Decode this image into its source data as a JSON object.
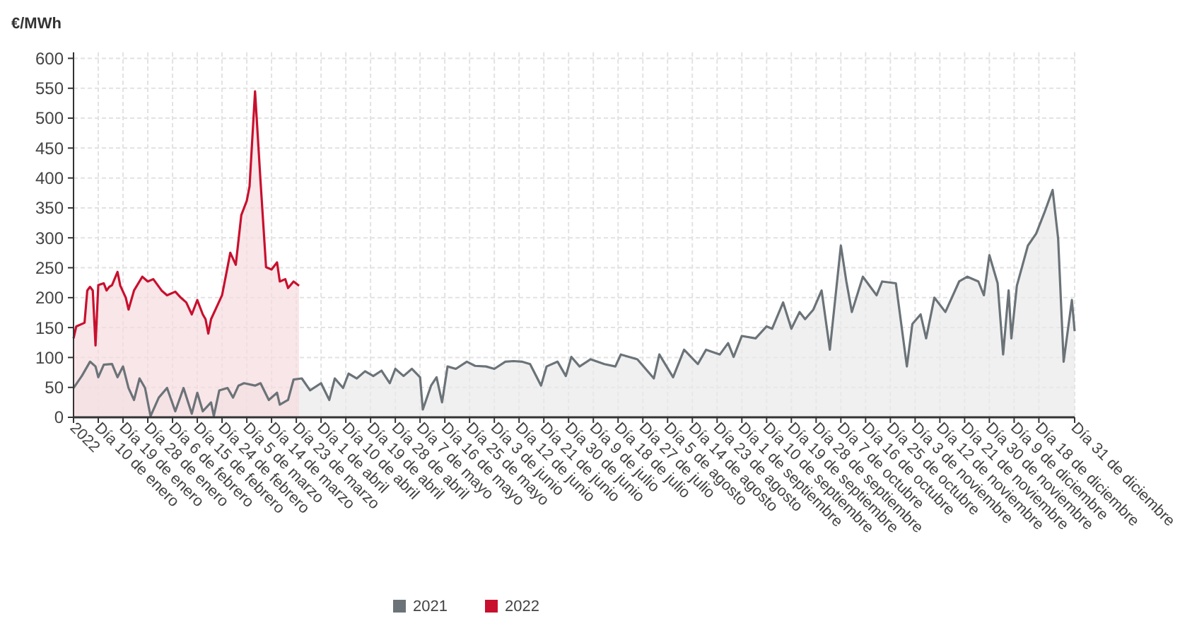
{
  "chart_data": {
    "type": "area",
    "ylabel": "€/MWh",
    "xlim": [
      "2022-01-01",
      "2022-12-31"
    ],
    "ylim": [
      0,
      610
    ],
    "yticks": [
      0,
      50,
      100,
      150,
      200,
      250,
      300,
      350,
      400,
      450,
      500,
      550,
      600
    ],
    "xticks": [
      {
        "value": "2022-01-01",
        "label": "2022"
      },
      {
        "value": "2022-01-10",
        "label": "Día 10 de enero"
      },
      {
        "value": "2022-01-19",
        "label": "Día 19 de enero"
      },
      {
        "value": "2022-01-28",
        "label": "Día 28 de enero"
      },
      {
        "value": "2022-02-06",
        "label": "Día 6 de febrero"
      },
      {
        "value": "2022-02-15",
        "label": "Día 15 de febrero"
      },
      {
        "value": "2022-02-24",
        "label": "Día 24 de febrero"
      },
      {
        "value": "2022-03-05",
        "label": "Día 5 de marzo"
      },
      {
        "value": "2022-03-14",
        "label": "Día 14 de marzo"
      },
      {
        "value": "2022-03-23",
        "label": "Día 23 de marzo"
      },
      {
        "value": "2022-04-01",
        "label": "Día 1 de abril"
      },
      {
        "value": "2022-04-10",
        "label": "Día 10 de abril"
      },
      {
        "value": "2022-04-19",
        "label": "Día 19 de abril"
      },
      {
        "value": "2022-04-28",
        "label": "Día 28 de abril"
      },
      {
        "value": "2022-05-07",
        "label": "Día 7 de mayo"
      },
      {
        "value": "2022-05-16",
        "label": "Día 16 de mayo"
      },
      {
        "value": "2022-05-25",
        "label": "Día 25 de mayo"
      },
      {
        "value": "2022-06-03",
        "label": "Día 3 de junio"
      },
      {
        "value": "2022-06-12",
        "label": "Día 12 de junio"
      },
      {
        "value": "2022-06-21",
        "label": "Día 21 de junio"
      },
      {
        "value": "2022-06-30",
        "label": "Día 30 de junio"
      },
      {
        "value": "2022-07-09",
        "label": "Día 9 de julio"
      },
      {
        "value": "2022-07-18",
        "label": "Día 18 de julio"
      },
      {
        "value": "2022-07-27",
        "label": "Día 27 de julio"
      },
      {
        "value": "2022-08-05",
        "label": "Día 5 de agosto"
      },
      {
        "value": "2022-08-14",
        "label": "Día 14 de agosto"
      },
      {
        "value": "2022-08-23",
        "label": "Día 23 de agosto"
      },
      {
        "value": "2022-09-01",
        "label": "Día 1 de septiembre"
      },
      {
        "value": "2022-09-10",
        "label": "Día 10 de septiembre"
      },
      {
        "value": "2022-09-19",
        "label": "Día 19 de septiembre"
      },
      {
        "value": "2022-09-28",
        "label": "Día 28 de septiembre"
      },
      {
        "value": "2022-10-07",
        "label": "Día 7 de octubre"
      },
      {
        "value": "2022-10-16",
        "label": "Día 16 de octubre"
      },
      {
        "value": "2022-10-25",
        "label": "Día 25 de octubre"
      },
      {
        "value": "2022-11-03",
        "label": "Día 3 de noviembre"
      },
      {
        "value": "2022-11-12",
        "label": "Día 12 de noviembre"
      },
      {
        "value": "2022-11-21",
        "label": "Día 21 de noviembre"
      },
      {
        "value": "2022-11-30",
        "label": "Día 30 de noviembre"
      },
      {
        "value": "2022-12-09",
        "label": "Día 9 de diciembre"
      },
      {
        "value": "2022-12-18",
        "label": "Día 18 de diciembre"
      },
      {
        "value": "2022-12-31",
        "label": "Día 31 de diciembre"
      }
    ],
    "grid": true,
    "legend": "bottom",
    "series": [
      {
        "name": "2021",
        "color": "#6b7378",
        "x": [
          "2022-01-01",
          "2022-01-04",
          "2022-01-07",
          "2022-01-09",
          "2022-01-10",
          "2022-01-12",
          "2022-01-15",
          "2022-01-17",
          "2022-01-19",
          "2022-01-21",
          "2022-01-23",
          "2022-01-25",
          "2022-01-27",
          "2022-01-29",
          "2022-02-01",
          "2022-02-04",
          "2022-02-07",
          "2022-02-10",
          "2022-02-13",
          "2022-02-15",
          "2022-02-17",
          "2022-02-20",
          "2022-02-21",
          "2022-02-23",
          "2022-02-26",
          "2022-02-28",
          "2022-03-02",
          "2022-03-04",
          "2022-03-08",
          "2022-03-10",
          "2022-03-13",
          "2022-03-16",
          "2022-03-17",
          "2022-03-20",
          "2022-03-22",
          "2022-03-25",
          "2022-03-28",
          "2022-04-01",
          "2022-04-04",
          "2022-04-06",
          "2022-04-09",
          "2022-04-11",
          "2022-04-14",
          "2022-04-17",
          "2022-04-20",
          "2022-04-23",
          "2022-04-26",
          "2022-04-28",
          "2022-05-01",
          "2022-05-04",
          "2022-05-07",
          "2022-05-08",
          "2022-05-11",
          "2022-05-13",
          "2022-05-15",
          "2022-05-17",
          "2022-05-20",
          "2022-05-24",
          "2022-05-27",
          "2022-05-31",
          "2022-06-03",
          "2022-06-07",
          "2022-06-10",
          "2022-06-13",
          "2022-06-16",
          "2022-06-20",
          "2022-06-22",
          "2022-06-26",
          "2022-06-29",
          "2022-07-01",
          "2022-07-04",
          "2022-07-08",
          "2022-07-13",
          "2022-07-17",
          "2022-07-19",
          "2022-07-25",
          "2022-07-31",
          "2022-08-02",
          "2022-08-07",
          "2022-08-11",
          "2022-08-16",
          "2022-08-19",
          "2022-08-24",
          "2022-08-27",
          "2022-08-29",
          "2022-09-01",
          "2022-09-06",
          "2022-09-10",
          "2022-09-12",
          "2022-09-16",
          "2022-09-19",
          "2022-09-22",
          "2022-09-24",
          "2022-09-27",
          "2022-09-30",
          "2022-10-03",
          "2022-10-05",
          "2022-10-07",
          "2022-10-09",
          "2022-10-11",
          "2022-10-15",
          "2022-10-20",
          "2022-10-22",
          "2022-10-27",
          "2022-10-31",
          "2022-11-02",
          "2022-11-05",
          "2022-11-07",
          "2022-11-10",
          "2022-11-14",
          "2022-11-19",
          "2022-11-22",
          "2022-11-26",
          "2022-11-28",
          "2022-11-30",
          "2022-12-03",
          "2022-12-05",
          "2022-12-07",
          "2022-12-08",
          "2022-12-10",
          "2022-12-14",
          "2022-12-17",
          "2022-12-20",
          "2022-12-23",
          "2022-12-25",
          "2022-12-27",
          "2022-12-30",
          "2022-12-31"
        ],
        "values": [
          49,
          69,
          93,
          85,
          67,
          88,
          89,
          67,
          85,
          49,
          29,
          65,
          49,
          2,
          33,
          49,
          10,
          49,
          6,
          41,
          10,
          25,
          2,
          45,
          49,
          33,
          53,
          57,
          53,
          57,
          29,
          41,
          21,
          29,
          63,
          65,
          45,
          57,
          29,
          65,
          49,
          73,
          65,
          77,
          69,
          78,
          57,
          81,
          69,
          81,
          67,
          13,
          53,
          67,
          25,
          85,
          81,
          93,
          86,
          85,
          81,
          93,
          94,
          93,
          89,
          53,
          85,
          93,
          69,
          101,
          85,
          97,
          89,
          85,
          105,
          97,
          65,
          105,
          67,
          113,
          89,
          113,
          105,
          124,
          101,
          136,
          132,
          152,
          148,
          192,
          148,
          176,
          164,
          180,
          212,
          113,
          200,
          287,
          227,
          176,
          235,
          204,
          227,
          224,
          85,
          156,
          172,
          132,
          200,
          176,
          227,
          235,
          227,
          204,
          271,
          224,
          105,
          212,
          132,
          220,
          287,
          307,
          342,
          380,
          299,
          93,
          196,
          144
        ]
      },
      {
        "name": "2022",
        "color": "#c8102e",
        "x": [
          "2022-01-01",
          "2022-01-02",
          "2022-01-05",
          "2022-01-06",
          "2022-01-07",
          "2022-01-08",
          "2022-01-09",
          "2022-01-10",
          "2022-01-12",
          "2022-01-13",
          "2022-01-14",
          "2022-01-15",
          "2022-01-17",
          "2022-01-18",
          "2022-01-20",
          "2022-01-21",
          "2022-01-23",
          "2022-01-26",
          "2022-01-28",
          "2022-01-30",
          "2022-02-02",
          "2022-02-04",
          "2022-02-07",
          "2022-02-09",
          "2022-02-11",
          "2022-02-13",
          "2022-02-15",
          "2022-02-17",
          "2022-02-18",
          "2022-02-19",
          "2022-02-20",
          "2022-02-22",
          "2022-02-24",
          "2022-02-26",
          "2022-02-27",
          "2022-03-01",
          "2022-03-03",
          "2022-03-05",
          "2022-03-06",
          "2022-03-08",
          "2022-03-10",
          "2022-03-12",
          "2022-03-14",
          "2022-03-16",
          "2022-03-17",
          "2022-03-19",
          "2022-03-20",
          "2022-03-22",
          "2022-03-24"
        ],
        "values": [
          132,
          152,
          158,
          212,
          218,
          212,
          120,
          221,
          224,
          212,
          218,
          221,
          243,
          220,
          200,
          180,
          212,
          235,
          227,
          231,
          212,
          204,
          210,
          200,
          192,
          172,
          196,
          172,
          164,
          140,
          164,
          184,
          204,
          251,
          275,
          255,
          338,
          362,
          386,
          545,
          394,
          251,
          247,
          259,
          227,
          231,
          216,
          227,
          220
        ]
      }
    ]
  }
}
